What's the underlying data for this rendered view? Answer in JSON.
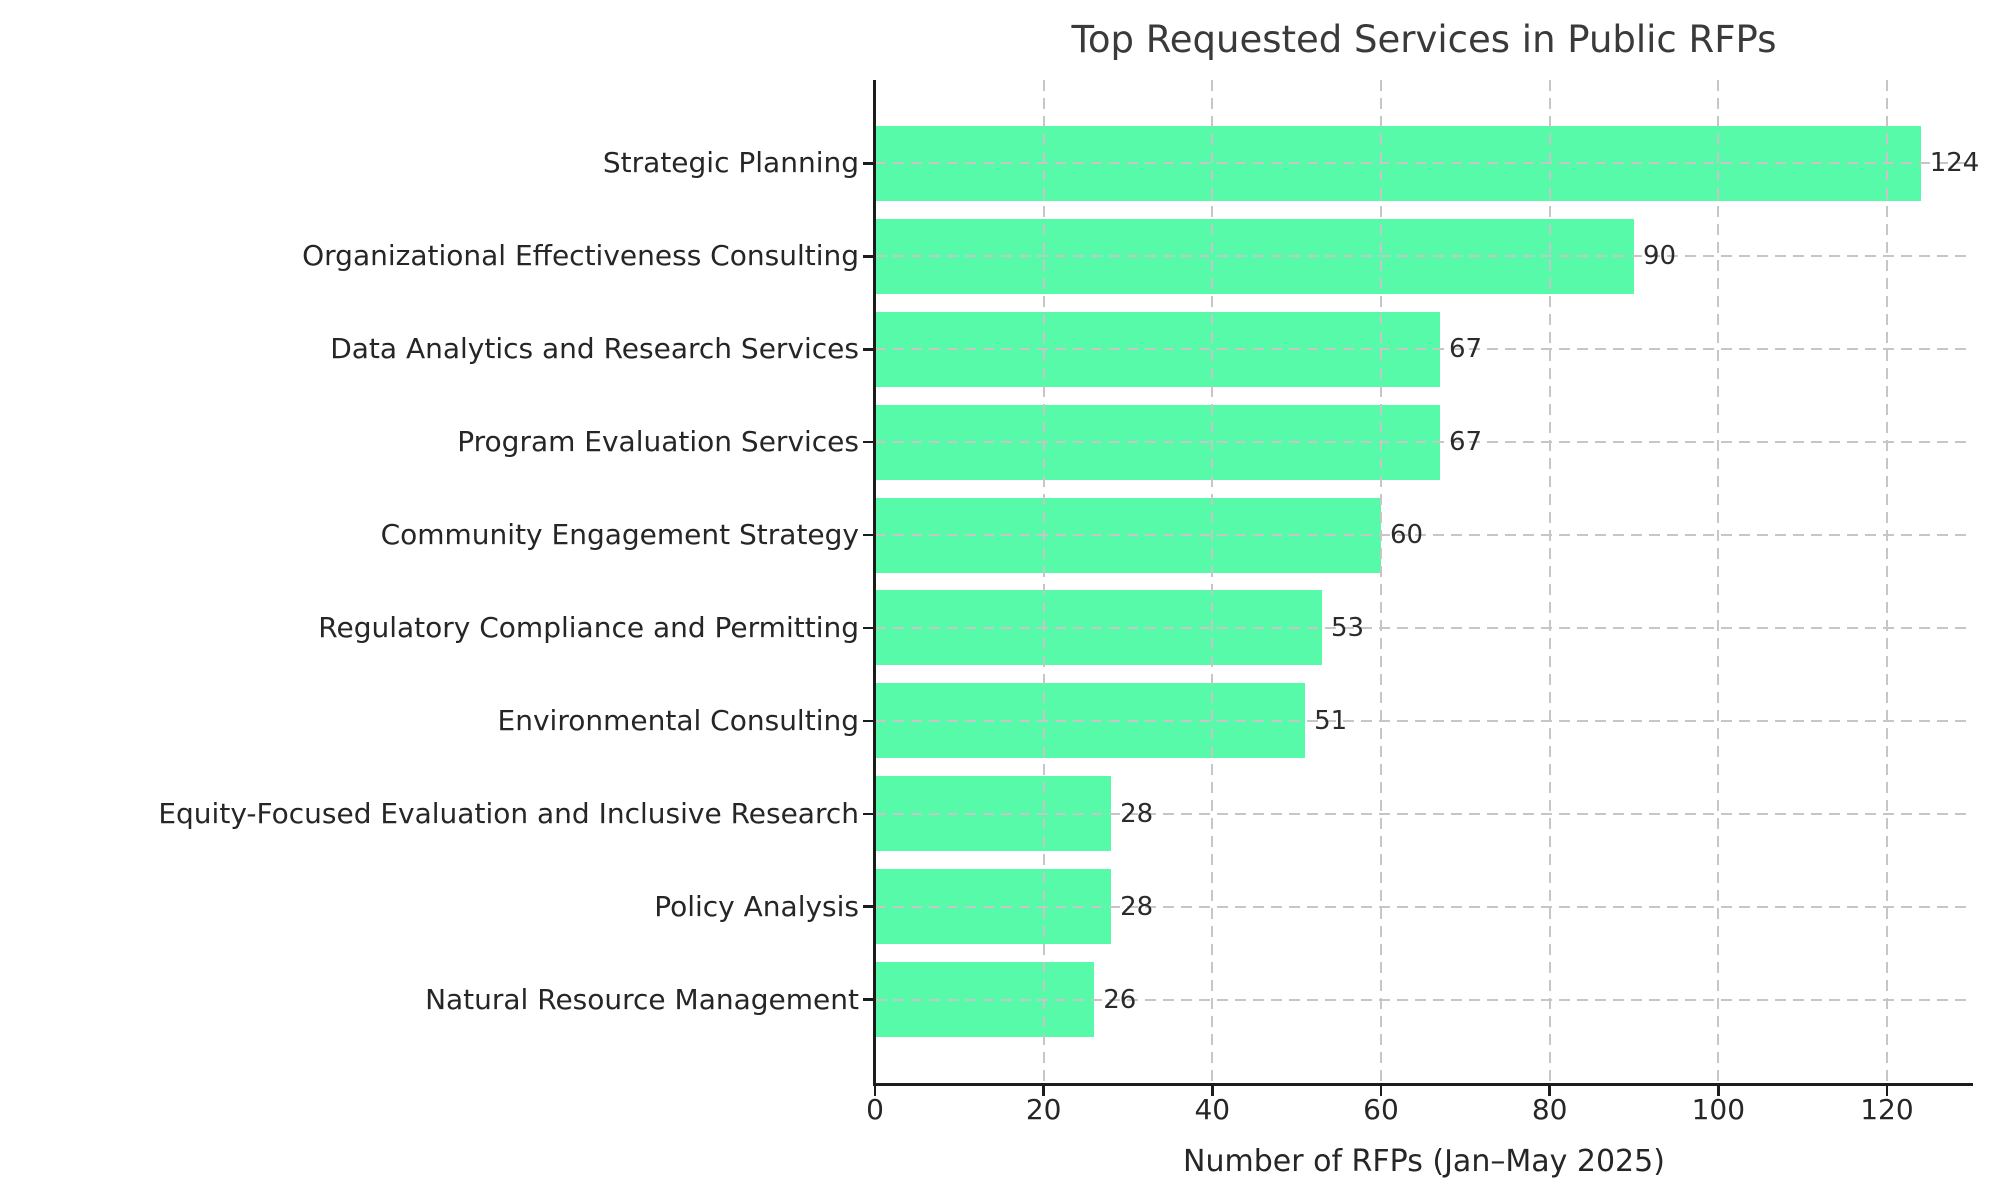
{
  "chart_data": {
    "type": "bar",
    "orientation": "horizontal",
    "title": "Top Requested Services in Public RFPs",
    "xlabel": "Number of RFPs (Jan–May 2025)",
    "ylabel": "",
    "categories": [
      "Strategic Planning",
      "Organizational Effectiveness Consulting",
      "Data Analytics and Research Services",
      "Program Evaluation Services",
      "Community Engagement Strategy",
      "Regulatory Compliance and Permitting",
      "Environmental Consulting",
      "Equity-Focused Evaluation and Inclusive Research",
      "Policy Analysis",
      "Natural Resource Management"
    ],
    "values": [
      124,
      90,
      67,
      67,
      60,
      53,
      51,
      28,
      28,
      26
    ],
    "value_labels": [
      "124",
      "90",
      "67",
      "67",
      "60",
      "53",
      "51",
      "28",
      "28",
      "26"
    ],
    "xticks": [
      0,
      20,
      40,
      60,
      80,
      100,
      120
    ],
    "xlim": [
      0,
      130.2
    ],
    "grid": "dashed-both-axes",
    "legend": "none",
    "bar_color": "#56faa9",
    "grid_color": "#c6c6c6",
    "spine_color": "#1c1c1c",
    "text_color": "#262626",
    "title_color": "#3a3a3a",
    "background_color": "#ffffff"
  }
}
